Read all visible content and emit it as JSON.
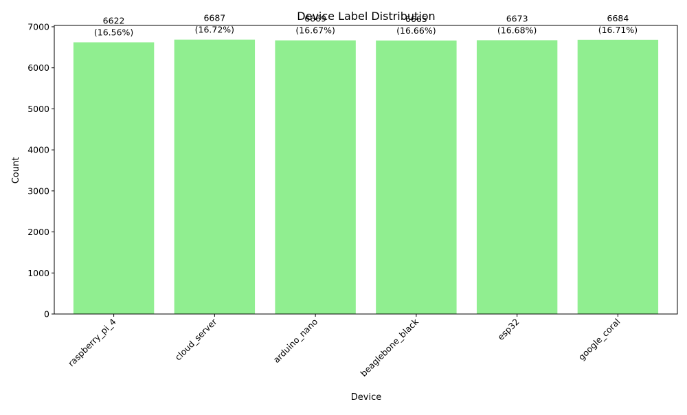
{
  "chart_data": {
    "type": "bar",
    "title": "Device Label Distribution",
    "xlabel": "Device",
    "ylabel": "Count",
    "categories": [
      "raspberry_pi_4",
      "cloud_server",
      "arduino_nano",
      "beaglebone_black",
      "esp32",
      "google_coral"
    ],
    "values": [
      6622,
      6687,
      6669,
      6665,
      6673,
      6684
    ],
    "value_labels": [
      "6622",
      "6687",
      "6669",
      "6665",
      "6673",
      "6684"
    ],
    "percent_labels": [
      "(16.56%)",
      "(16.72%)",
      "(16.67%)",
      "(16.66%)",
      "(16.68%)",
      "(16.71%)"
    ],
    "ylim": [
      0,
      7033
    ],
    "yticks": [
      0,
      1000,
      2000,
      3000,
      4000,
      5000,
      6000,
      7000
    ],
    "ytick_labels": [
      "0",
      "1000",
      "2000",
      "3000",
      "4000",
      "5000",
      "6000",
      "7000"
    ],
    "bar_color": "#90ee90",
    "grid": false,
    "legend": "none"
  }
}
